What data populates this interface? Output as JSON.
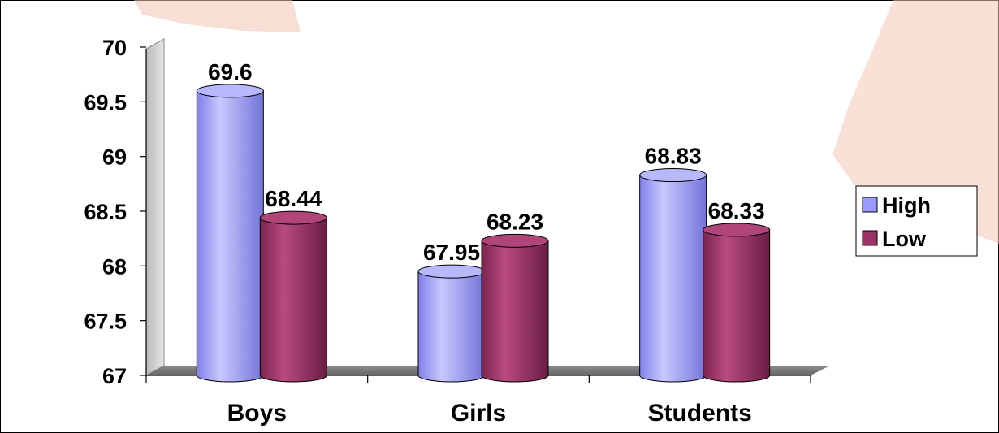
{
  "chart_data": {
    "type": "bar",
    "categories": [
      "Boys",
      "Girls",
      "Students"
    ],
    "series": [
      {
        "name": "High",
        "values": [
          69.6,
          67.95,
          68.83
        ],
        "color": "#9999ff"
      },
      {
        "name": "Low",
        "values": [
          68.44,
          68.23,
          68.33
        ],
        "color": "#993366"
      }
    ],
    "data_labels": [
      [
        "69.6",
        "67.95",
        "68.83"
      ],
      [
        "68.44",
        "68.23",
        "68.33"
      ]
    ],
    "yticks": [
      "70",
      "69.5",
      "69",
      "68.5",
      "68",
      "67.5",
      "67"
    ],
    "ylim": [
      67,
      70
    ],
    "title": "",
    "xlabel": "",
    "ylabel": "",
    "legend_position": "right",
    "bar_style": "3d-cylinder",
    "grid": false
  }
}
